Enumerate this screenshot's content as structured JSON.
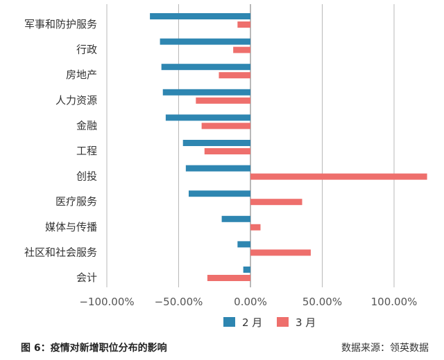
{
  "chart_data": {
    "type": "bar",
    "orientation": "horizontal",
    "categories": [
      "军事和防护服务",
      "行政",
      "房地产",
      "人力资源",
      "金融",
      "工程",
      "创投",
      "医疗服务",
      "媒体与传播",
      "社区和社会服务",
      "会计"
    ],
    "series": [
      {
        "name": "2 月",
        "color": "#2e86b1",
        "values": [
          -70,
          -63,
          -62,
          -61,
          -59,
          -47,
          -45,
          -43,
          -20,
          -9,
          -5
        ]
      },
      {
        "name": "3 月",
        "color": "#ee6f6c",
        "values": [
          -9,
          -12,
          -22,
          -38,
          -34,
          -32,
          123,
          36,
          7,
          42,
          -30
        ]
      }
    ],
    "xlim": [
      -100,
      125
    ],
    "ticks": [
      -100,
      -50,
      0,
      50,
      100
    ],
    "tick_labels": [
      "−100.00%",
      "−50.00%",
      "0.00%",
      "50.00%",
      "100.00%"
    ],
    "grid": true,
    "legend": "bottom-center"
  },
  "footer": {
    "caption": "图 6：疫情对新增职位分布的影响",
    "source": "数据来源：领英数据"
  }
}
